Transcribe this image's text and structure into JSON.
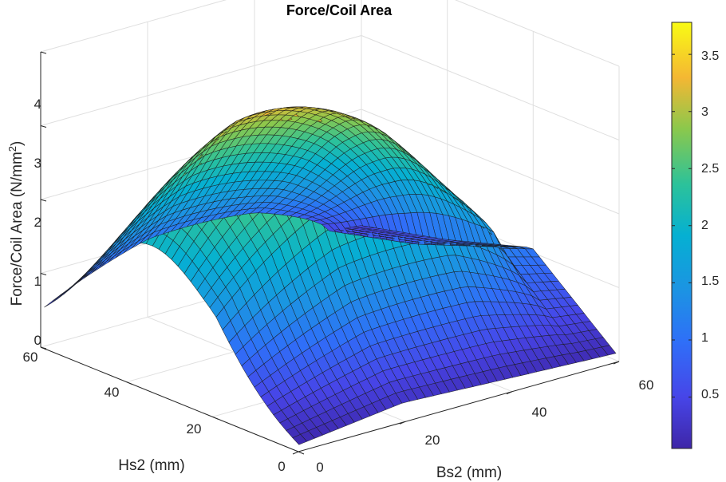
{
  "chart_data": {
    "type": "surface",
    "title": "Force/Coil Area",
    "xlabel": "Bs2 (mm)",
    "ylabel": "Hs2 (mm)",
    "zlabel_main": "Force/Coil Area (N/mm",
    "zlabel_sup": "2",
    "zlabel_close": ")",
    "x_range": [
      0,
      60
    ],
    "y_range": [
      0,
      60
    ],
    "z_range": [
      0,
      4
    ],
    "x_ticks": [
      "0",
      "20",
      "40",
      "60"
    ],
    "y_ticks": [
      "0",
      "20",
      "40",
      "60"
    ],
    "z_ticks": [
      "0",
      "1",
      "2",
      "3",
      "4"
    ],
    "colormap": "parula",
    "colorbar": {
      "range": [
        0.05,
        3.78
      ],
      "ticks": [
        "0.5",
        "1",
        "1.5",
        "2",
        "2.5",
        "3",
        "3.5"
      ],
      "tick_values": [
        0.5,
        1,
        1.5,
        2,
        2.5,
        3,
        3.5
      ]
    },
    "surface_samples": {
      "x": [
        0,
        20,
        40,
        60
      ],
      "y": [
        0,
        20,
        40,
        60
      ],
      "z": [
        [
          0.05,
          0.45,
          0.25,
          0.12
        ],
        [
          1.45,
          3.1,
          3.7,
          2.6
        ],
        [
          0.95,
          2.1,
          2.2,
          1.7
        ],
        [
          0.35,
          1.2,
          1.4,
          1.0
        ]
      ]
    },
    "grid": true
  }
}
